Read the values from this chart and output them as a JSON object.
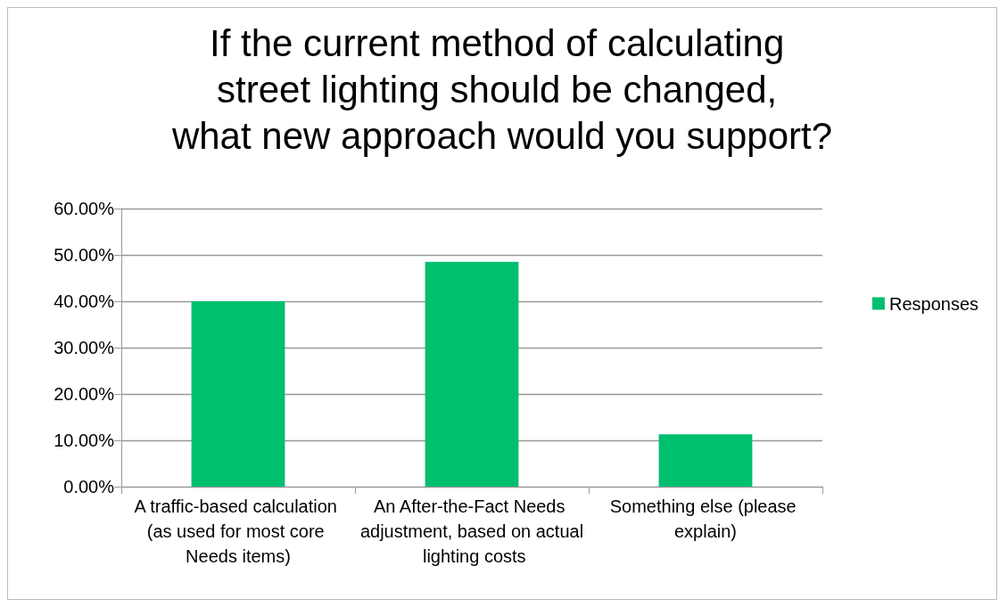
{
  "chart_data": {
    "type": "bar",
    "title": "If the current method of calculating street lighting should be changed, what new approach would you support?",
    "categories": [
      "A traffic-based calculation (as used for most core Needs items)",
      "An After-the-Fact Needs adjustment, based on actual lighting costs",
      "Something else (please explain)"
    ],
    "series": [
      {
        "name": "Responses",
        "color": "#00bf6f",
        "values": [
          40.0,
          48.5,
          11.3
        ]
      }
    ],
    "ylim": [
      0,
      60
    ],
    "yticks": [
      {
        "value": 0,
        "label": "0.00%"
      },
      {
        "value": 10,
        "label": "10.00%"
      },
      {
        "value": 20,
        "label": "20.00%"
      },
      {
        "value": 30,
        "label": "30.00%"
      },
      {
        "value": 40,
        "label": "40.00%"
      },
      {
        "value": 50,
        "label": "50.00%"
      },
      {
        "value": 60,
        "label": "60.00%"
      }
    ],
    "grid": "y",
    "legend": "right"
  }
}
